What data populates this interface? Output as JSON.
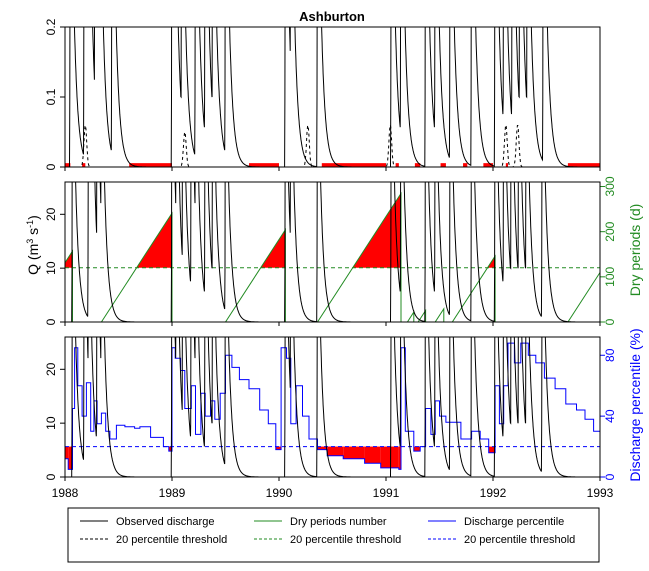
{
  "chart_data": {
    "type": "line",
    "title": "Ashburton",
    "x_range": [
      1988,
      1993
    ],
    "x_ticks": [
      "1988",
      "1989",
      "1990",
      "1991",
      "1992",
      "1993"
    ],
    "colors": {
      "observed": "#000000",
      "dry": "#228B22",
      "percentile": "#0000FF",
      "fill": "#FF0000"
    },
    "panels": [
      {
        "id": "top",
        "ylim": [
          0,
          0.2
        ],
        "y_ticks": [
          "0",
          "0.1",
          "0.2"
        ],
        "y_tick_values": [
          0,
          0.1,
          0.2
        ],
        "threshold": 0.0,
        "observed_peaks": [
          1988.05,
          1988.18,
          1988.22,
          1988.28,
          1988.32,
          1988.44,
          1989.0,
          1989.02,
          1989.09,
          1989.22,
          1989.31,
          1989.38,
          1989.5,
          1990.06,
          1990.11,
          1990.36,
          1991.05,
          1991.14,
          1991.37,
          1991.46,
          1991.6,
          1991.8,
          1992.02,
          1992.1,
          1992.18,
          1992.25,
          1992.32,
          1992.47
        ],
        "threshold_bumps": [
          [
            1988.19,
            0.06
          ],
          [
            1989.12,
            0.05
          ],
          [
            1990.27,
            0.06
          ],
          [
            1991.04,
            0.06
          ],
          [
            1992.12,
            0.06
          ],
          [
            1992.23,
            0.06
          ]
        ],
        "dry_periods": [
          [
            1988.0,
            1988.05
          ],
          [
            1988.16,
            1988.19
          ],
          [
            1988.6,
            1989.0
          ],
          [
            1989.72,
            1990.0
          ],
          [
            1990.4,
            1991.0
          ],
          [
            1991.09,
            1991.12
          ],
          [
            1991.27,
            1991.32
          ],
          [
            1991.51,
            1991.56
          ],
          [
            1991.72,
            1991.76
          ],
          [
            1991.91,
            1992.0
          ],
          [
            1992.12,
            1992.14
          ],
          [
            1992.7,
            1993.0
          ]
        ]
      },
      {
        "id": "middle",
        "ylim": [
          0,
          26
        ],
        "y_ticks": [
          "0",
          "10",
          "20"
        ],
        "y_tick_values": [
          0,
          10,
          20
        ],
        "secondary_ylim": [
          0,
          310
        ],
        "secondary_ticks": [
          "0",
          "100",
          "200",
          "300"
        ],
        "secondary_tick_values": [
          0,
          100,
          200,
          300
        ],
        "threshold_days": 120,
        "ylabel": "Q (m3 s-1)",
        "ylabel_main": "Q (m",
        "ylabel_sup1": "3",
        "ylabel_mid": " s",
        "ylabel_sup2": "-1",
        "ylabel_end": ")",
        "y2label": "Dry periods (d)",
        "observed_peaks": [
          1988.07,
          1988.22,
          1988.25,
          1988.3,
          1988.34,
          1989.0,
          1989.04,
          1989.1,
          1989.18,
          1989.22,
          1989.31,
          1989.38,
          1989.5,
          1990.06,
          1990.11,
          1990.36,
          1991.05,
          1991.14,
          1991.37,
          1991.46,
          1991.6,
          1991.8,
          1992.02,
          1992.1,
          1992.17,
          1992.24,
          1992.31,
          1992.46
        ],
        "dry_period_runs": [
          [
            1987.64,
            1988.07
          ],
          [
            1988.34,
            1989.0
          ],
          [
            1989.5,
            1990.06
          ],
          [
            1990.36,
            1991.14
          ],
          [
            1991.2,
            1991.26
          ],
          [
            1991.3,
            1991.37
          ],
          [
            1991.46,
            1991.54
          ],
          [
            1991.62,
            1992.02
          ],
          [
            1992.7,
            1993.0
          ]
        ]
      },
      {
        "id": "bottom",
        "ylim": [
          0,
          26
        ],
        "y_ticks": [
          "0",
          "10",
          "20"
        ],
        "y_tick_values": [
          0,
          10,
          20
        ],
        "secondary_ylim": [
          0,
          92
        ],
        "secondary_ticks": [
          "0",
          "40",
          "80"
        ],
        "secondary_tick_values": [
          0,
          40,
          80
        ],
        "threshold_pct": 20,
        "y2label": "Discharge percentile (%)",
        "observed_peaks": [
          1988.07,
          1988.18,
          1988.22,
          1988.3,
          1988.34,
          1989.0,
          1989.04,
          1989.1,
          1989.18,
          1989.22,
          1989.31,
          1989.38,
          1989.5,
          1990.06,
          1990.11,
          1990.36,
          1991.05,
          1991.14,
          1991.37,
          1991.46,
          1991.6,
          1991.8,
          1992.02,
          1992.1,
          1992.17,
          1992.24,
          1992.31,
          1992.46
        ],
        "percentile": [
          [
            1988.0,
            12
          ],
          [
            1988.03,
            5
          ],
          [
            1988.07,
            45
          ],
          [
            1988.09,
            85
          ],
          [
            1988.12,
            60
          ],
          [
            1988.16,
            40
          ],
          [
            1988.2,
            62
          ],
          [
            1988.24,
            30
          ],
          [
            1988.27,
            50
          ],
          [
            1988.3,
            35
          ],
          [
            1988.34,
            42
          ],
          [
            1988.38,
            30
          ],
          [
            1988.42,
            25
          ],
          [
            1988.48,
            34
          ],
          [
            1988.56,
            33
          ],
          [
            1988.65,
            32
          ],
          [
            1988.7,
            33
          ],
          [
            1988.8,
            26
          ],
          [
            1988.92,
            20
          ],
          [
            1988.97,
            17
          ],
          [
            1989.0,
            85
          ],
          [
            1989.03,
            78
          ],
          [
            1989.08,
            70
          ],
          [
            1989.12,
            45
          ],
          [
            1989.18,
            60
          ],
          [
            1989.22,
            28
          ],
          [
            1989.27,
            55
          ],
          [
            1989.31,
            40
          ],
          [
            1989.36,
            50
          ],
          [
            1989.4,
            38
          ],
          [
            1989.45,
            55
          ],
          [
            1989.5,
            80
          ],
          [
            1989.56,
            72
          ],
          [
            1989.63,
            64
          ],
          [
            1989.72,
            58
          ],
          [
            1989.82,
            44
          ],
          [
            1989.9,
            35
          ],
          [
            1989.97,
            18
          ],
          [
            1990.02,
            85
          ],
          [
            1990.07,
            78
          ],
          [
            1990.11,
            35
          ],
          [
            1990.16,
            60
          ],
          [
            1990.22,
            40
          ],
          [
            1990.28,
            25
          ],
          [
            1990.36,
            18
          ],
          [
            1990.45,
            14
          ],
          [
            1990.6,
            12
          ],
          [
            1990.8,
            9
          ],
          [
            1990.95,
            6
          ],
          [
            1991.12,
            5
          ],
          [
            1991.14,
            85
          ],
          [
            1991.18,
            30
          ],
          [
            1991.26,
            17
          ],
          [
            1991.32,
            20
          ],
          [
            1991.37,
            45
          ],
          [
            1991.42,
            28
          ],
          [
            1991.46,
            50
          ],
          [
            1991.5,
            40
          ],
          [
            1991.56,
            36
          ],
          [
            1991.62,
            36
          ],
          [
            1991.7,
            25
          ],
          [
            1991.8,
            30
          ],
          [
            1991.88,
            25
          ],
          [
            1991.96,
            16
          ],
          [
            1992.02,
            60
          ],
          [
            1992.06,
            35
          ],
          [
            1992.1,
            60
          ],
          [
            1992.14,
            88
          ],
          [
            1992.2,
            75
          ],
          [
            1992.26,
            88
          ],
          [
            1992.33,
            80
          ],
          [
            1992.4,
            75
          ],
          [
            1992.48,
            65
          ],
          [
            1992.58,
            58
          ],
          [
            1992.68,
            48
          ],
          [
            1992.78,
            44
          ],
          [
            1992.86,
            38
          ],
          [
            1992.94,
            30
          ],
          [
            1993.0,
            15
          ]
        ]
      }
    ],
    "legend": [
      {
        "label": "Observed discharge",
        "color": "#000000",
        "dashed": false
      },
      {
        "label": "Dry periods number",
        "color": "#228B22",
        "dashed": false
      },
      {
        "label": "Discharge percentile",
        "color": "#0000FF",
        "dashed": false
      },
      {
        "label": "20 percentile threshold",
        "color": "#000000",
        "dashed": true
      },
      {
        "label": "20 percentile threshold",
        "color": "#228B22",
        "dashed": true
      },
      {
        "label": "20 percentile threshold",
        "color": "#0000FF",
        "dashed": true
      }
    ]
  }
}
